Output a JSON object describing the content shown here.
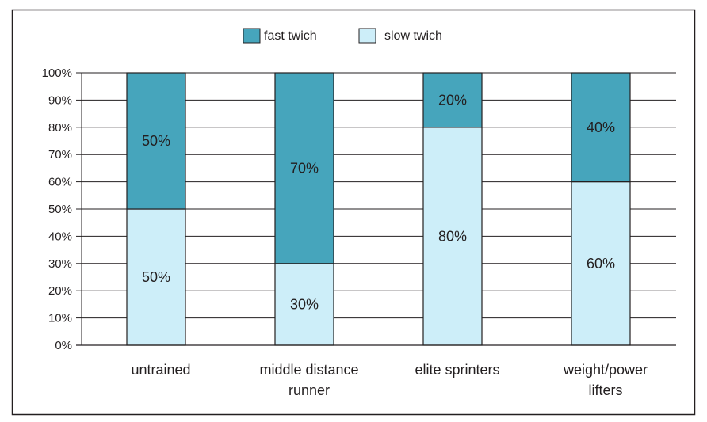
{
  "chart_data": {
    "type": "bar",
    "stacked": true,
    "categories": [
      [
        "untrained"
      ],
      [
        "middle distance",
        "runner"
      ],
      [
        "elite sprinters"
      ],
      [
        "weight/power",
        "lifters"
      ]
    ],
    "series": [
      {
        "name": "slow twich",
        "values": [
          50,
          30,
          80,
          60
        ],
        "labels": [
          "50%",
          "30%",
          "80%",
          "60%"
        ],
        "color": "#cdeef9"
      },
      {
        "name": "fast twich",
        "values": [
          50,
          70,
          20,
          40
        ],
        "labels": [
          "50%",
          "70%",
          "20%",
          "40%"
        ],
        "color": "#46a5bc"
      }
    ],
    "legend": {
      "position": "top-center",
      "entries": [
        "fast twich",
        "slow twich"
      ]
    },
    "ylim": [
      0,
      100
    ],
    "yticks": [
      "0%",
      "10%",
      "20%",
      "30%",
      "40%",
      "50%",
      "60%",
      "70%",
      "80%",
      "90%",
      "100%"
    ],
    "grid": true,
    "title": "",
    "xlabel": "",
    "ylabel": ""
  }
}
